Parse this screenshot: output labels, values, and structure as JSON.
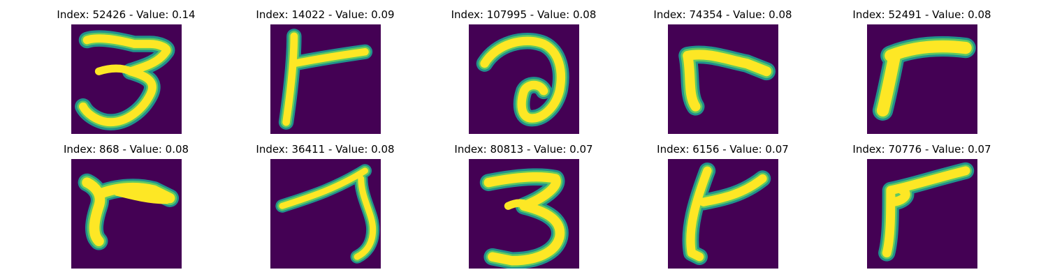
{
  "colors": {
    "background": "#440154",
    "mid_1": "#3b528b",
    "mid_2": "#21918c",
    "mid_3": "#5ec962",
    "stroke": "#fde725"
  },
  "grid": {
    "rows": 2,
    "cols": 5
  },
  "tiles": [
    {
      "title": "Index: 52426 - Value: 0.14",
      "index": 52426,
      "value": 0.14,
      "glyph": "3"
    },
    {
      "title": "Index: 14022 - Value: 0.09",
      "index": 14022,
      "value": 0.09,
      "glyph": "r"
    },
    {
      "title": "Index: 107995 - Value: 0.08",
      "index": 107995,
      "value": 0.08,
      "glyph": "a"
    },
    {
      "title": "Index: 74354 - Value: 0.08",
      "index": 74354,
      "value": 0.08,
      "glyph": "r"
    },
    {
      "title": "Index: 52491 - Value: 0.08",
      "index": 52491,
      "value": 0.08,
      "glyph": "r"
    },
    {
      "title": "Index: 868 - Value: 0.08",
      "index": 868,
      "value": 0.08,
      "glyph": "r"
    },
    {
      "title": "Index: 36411 - Value: 0.08",
      "index": 36411,
      "value": 0.08,
      "glyph": "7"
    },
    {
      "title": "Index: 80813 - Value: 0.07",
      "index": 80813,
      "value": 0.07,
      "glyph": "3"
    },
    {
      "title": "Index: 6156 - Value: 0.07",
      "index": 6156,
      "value": 0.07,
      "glyph": "r"
    },
    {
      "title": "Index: 70776 - Value: 0.07",
      "index": 70776,
      "value": 0.07,
      "glyph": "r"
    }
  ]
}
